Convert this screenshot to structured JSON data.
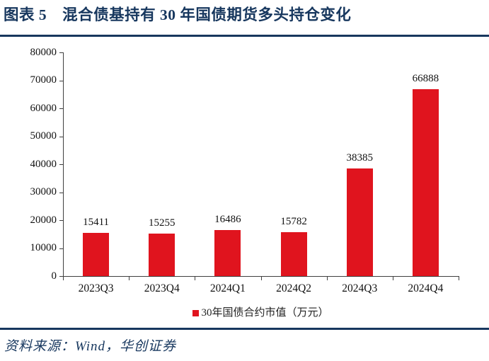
{
  "page": {
    "title": "图表 5　混合债基持有 30 年国债期货多头持仓变化",
    "source": "资料来源：Wind，华创证券"
  },
  "colors": {
    "title_navy": "#17375e",
    "rule_navy": "#17375e",
    "bar_red": "#e0141e",
    "axis_gray": "#3f3f3f",
    "label_black": "#111111"
  },
  "chart_data": {
    "type": "bar",
    "title": "图表 5　混合债基持有 30 年国债期货多头持仓变化",
    "categories": [
      "2023Q3",
      "2023Q4",
      "2024Q1",
      "2024Q2",
      "2024Q3",
      "2024Q4"
    ],
    "values": [
      15411,
      15255,
      16486,
      15782,
      38385,
      66888
    ],
    "series_name": "30年国债合约市值（万元）",
    "data_labels": [
      "15411",
      "15255",
      "16486",
      "15782",
      "38385",
      "66888"
    ],
    "xlabel": "",
    "ylabel": "",
    "ylim": [
      0,
      80000
    ],
    "yticks": [
      0,
      10000,
      20000,
      30000,
      40000,
      50000,
      60000,
      70000,
      80000
    ],
    "grid": false,
    "bar_color": "#e0141e",
    "legend": {
      "label": "30年国债合约市值（万元）",
      "position": "bottom",
      "marker_color": "#e0141e"
    }
  }
}
